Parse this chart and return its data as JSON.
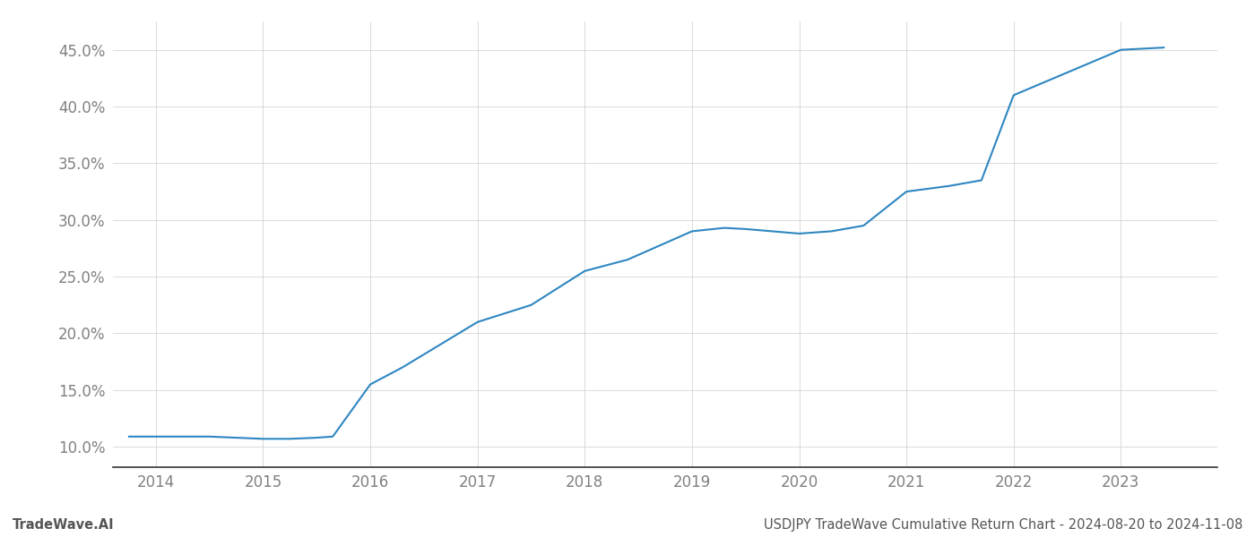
{
  "x_years": [
    2013.75,
    2014.0,
    2014.5,
    2015.0,
    2015.25,
    2015.5,
    2015.65,
    2016.0,
    2016.3,
    2017.0,
    2017.5,
    2018.0,
    2018.4,
    2019.0,
    2019.3,
    2019.5,
    2020.0,
    2020.3,
    2020.6,
    2021.0,
    2021.4,
    2021.7,
    2022.0,
    2022.5,
    2023.0,
    2023.4
  ],
  "y_values": [
    0.109,
    0.109,
    0.109,
    0.107,
    0.107,
    0.108,
    0.109,
    0.155,
    0.17,
    0.21,
    0.225,
    0.255,
    0.265,
    0.29,
    0.293,
    0.292,
    0.288,
    0.29,
    0.295,
    0.325,
    0.33,
    0.335,
    0.41,
    0.43,
    0.45,
    0.452
  ],
  "line_color": "#2e86c1",
  "line_width": 1.5,
  "background_color": "#ffffff",
  "grid_color": "#d5d5d5",
  "xlim": [
    2013.6,
    2023.9
  ],
  "ylim": [
    0.082,
    0.475
  ],
  "yticks": [
    0.1,
    0.15,
    0.2,
    0.25,
    0.3,
    0.35,
    0.4,
    0.45
  ],
  "xticks": [
    2014,
    2015,
    2016,
    2017,
    2018,
    2019,
    2020,
    2021,
    2022,
    2023
  ],
  "footer_left": "TradeWave.AI",
  "footer_right": "USDJPY TradeWave Cumulative Return Chart - 2024-08-20 to 2024-11-08",
  "tick_label_color": "#808080",
  "footer_color": "#555555",
  "tick_fontsize": 12,
  "footer_fontsize": 10.5
}
